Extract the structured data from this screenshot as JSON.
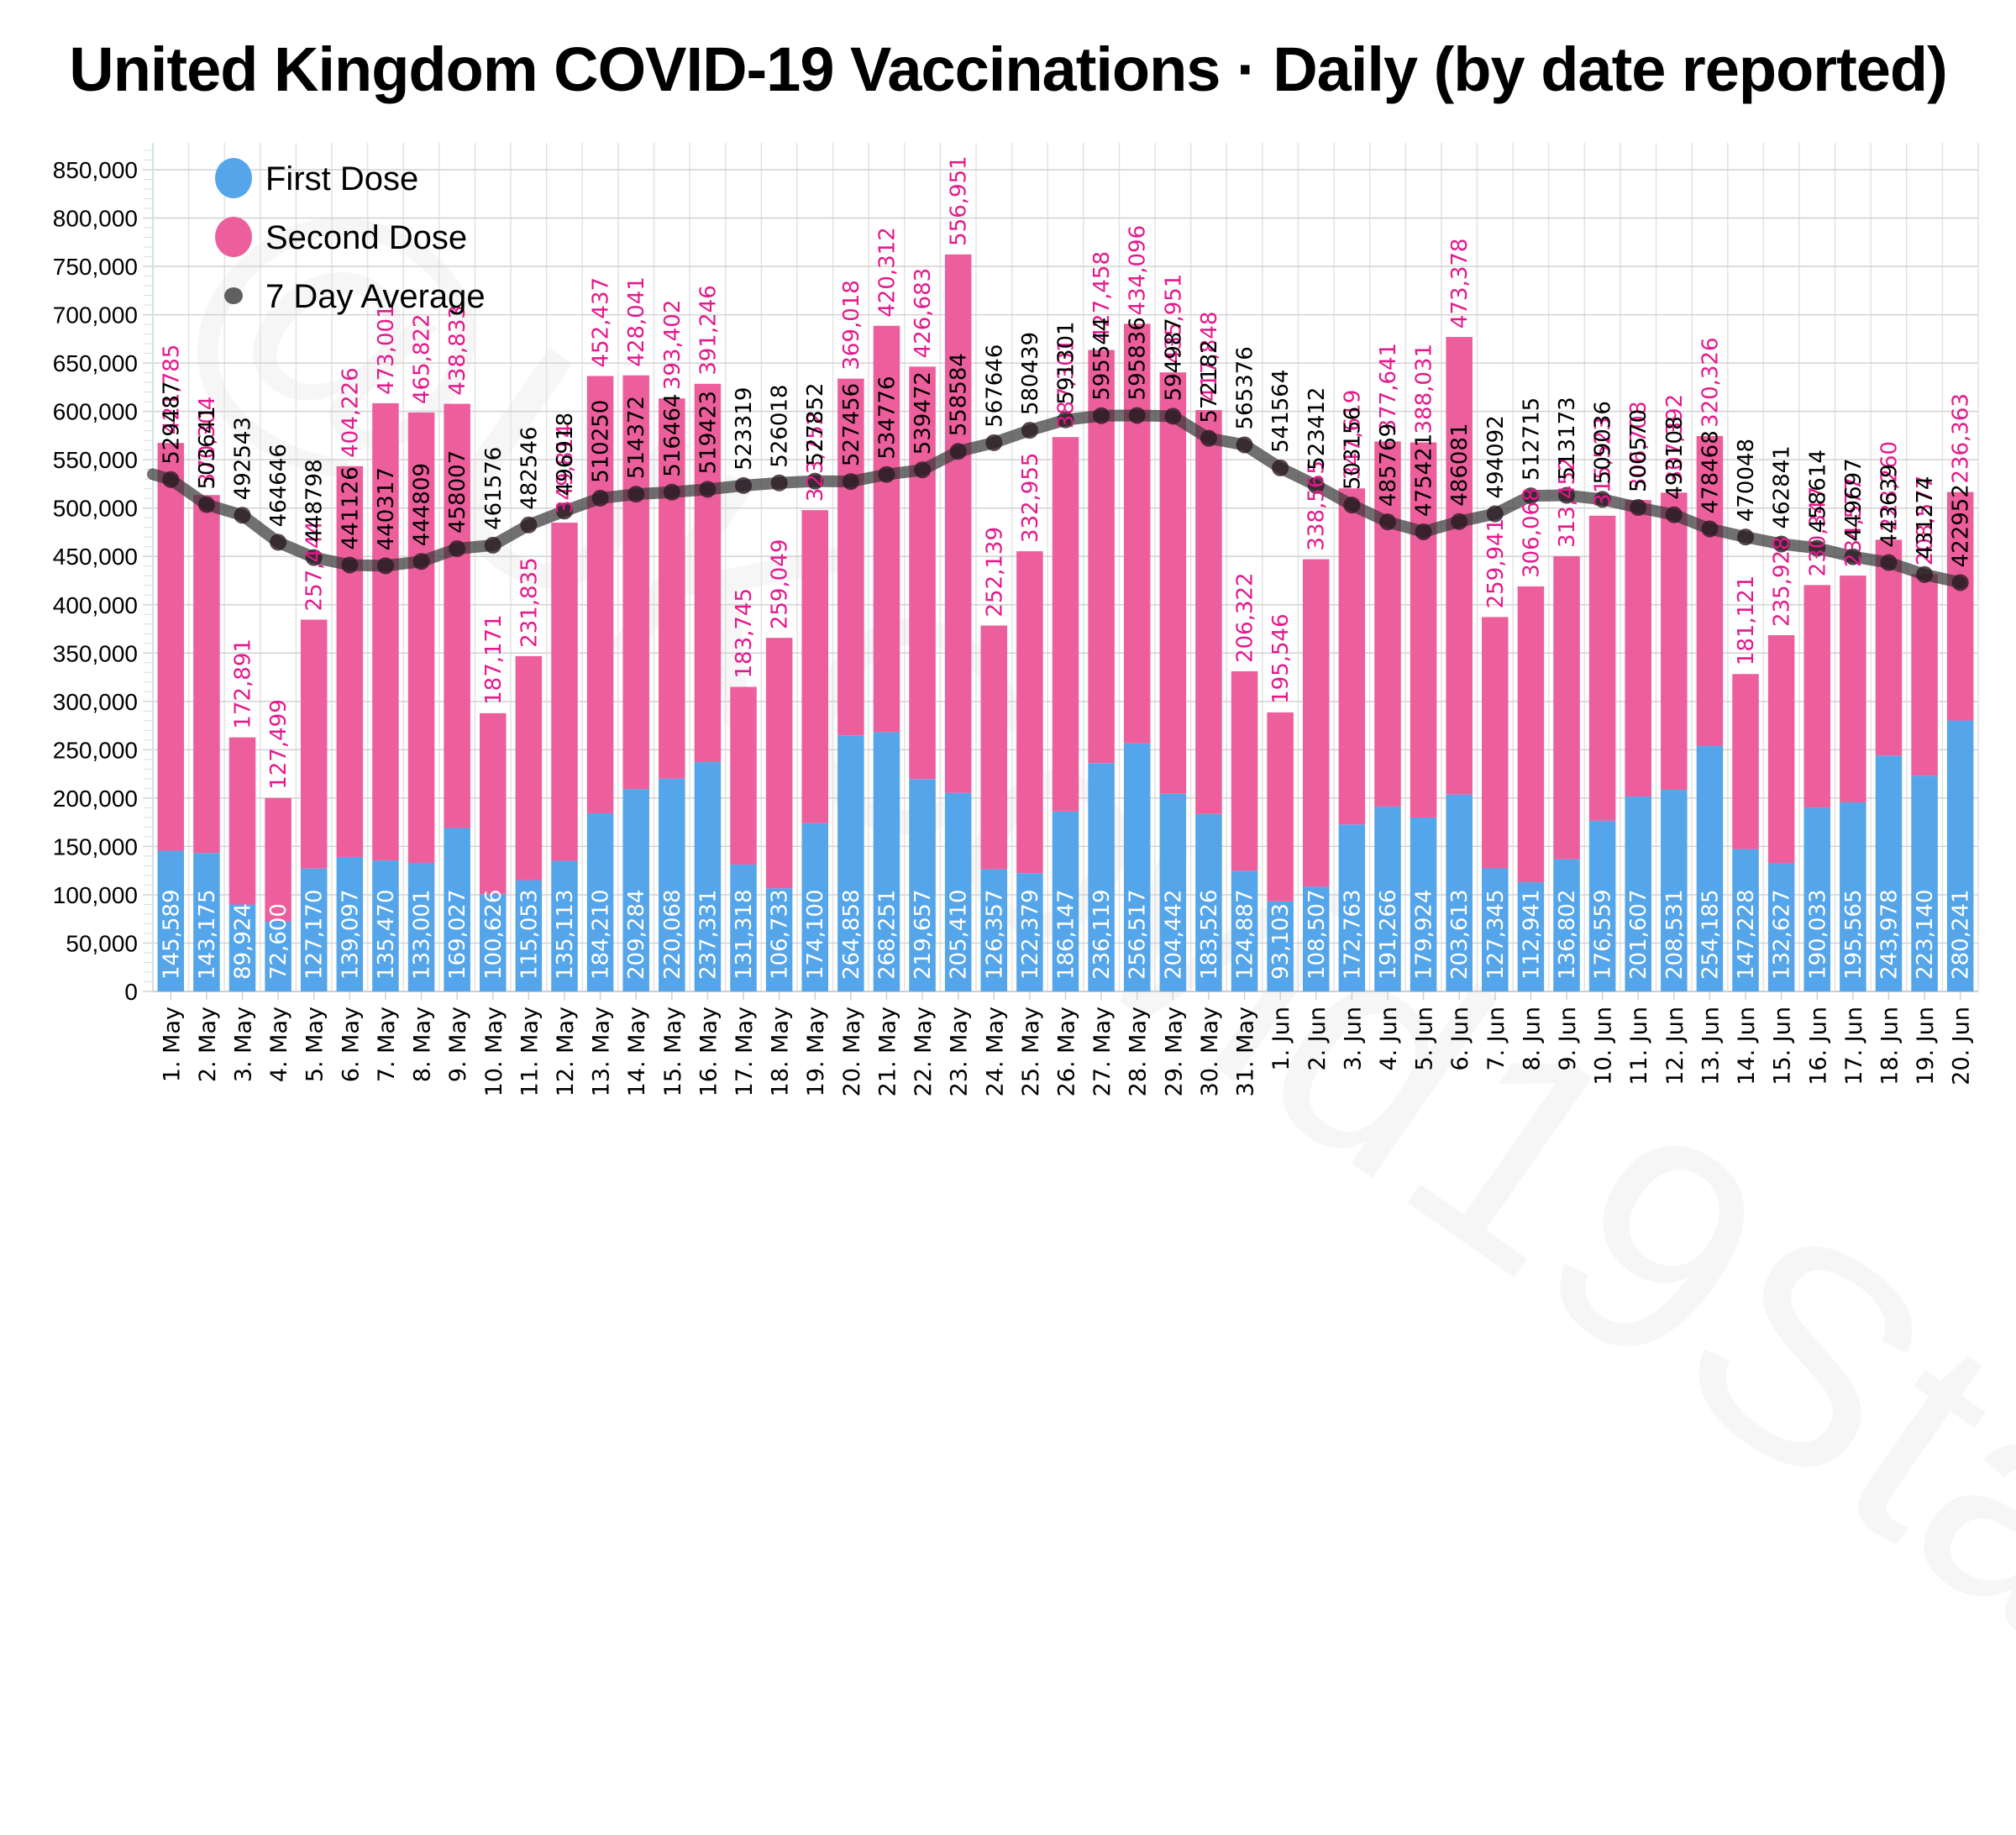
{
  "chart_data": {
    "type": "bar",
    "stacked": true,
    "title": "United Kingdom COVID-19 Vaccinations · Daily (by date reported)",
    "xlabel": "",
    "ylabel": "",
    "ylim": [
      0,
      870000
    ],
    "yticks": [
      0,
      50000,
      100000,
      150000,
      200000,
      250000,
      300000,
      350000,
      400000,
      450000,
      500000,
      550000,
      600000,
      650000,
      700000,
      750000,
      800000,
      850000
    ],
    "ytick_labels": [
      "0",
      "50,000",
      "100,000",
      "150,000",
      "200,000",
      "250,000",
      "300,000",
      "350,000",
      "400,000",
      "450,000",
      "500,000",
      "550,000",
      "600,000",
      "650,000",
      "700,000",
      "750,000",
      "800,000",
      "850,000"
    ],
    "grid": true,
    "legend_position": "top-left",
    "categories": [
      "1. May",
      "2. May",
      "3. May",
      "4. May",
      "5. May",
      "6. May",
      "7. May",
      "8. May",
      "9. May",
      "10. May",
      "11. May",
      "12. May",
      "13. May",
      "14. May",
      "15. May",
      "16. May",
      "17. May",
      "18. May",
      "19. May",
      "20. May",
      "21. May",
      "22. May",
      "23. May",
      "24. May",
      "25. May",
      "26. May",
      "27. May",
      "28. May",
      "29. May",
      "30. May",
      "31. May",
      "1. Jun",
      "2. Jun",
      "3. Jun",
      "4. Jun",
      "5. Jun",
      "6. Jun",
      "7. Jun",
      "8. Jun",
      "9. Jun",
      "10. Jun",
      "11. Jun",
      "12. Jun",
      "13. Jun",
      "14. Jun",
      "15. Jun",
      "16. Jun",
      "17. Jun",
      "18. Jun",
      "19. Jun",
      "20. Jun"
    ],
    "series": [
      {
        "name": "First Dose",
        "type": "bar",
        "color": "#55a5ea",
        "label_color": "#ffffff",
        "values": [
          145589,
          143175,
          89924,
          72600,
          127170,
          139097,
          135470,
          133001,
          169027,
          100626,
          115053,
          135113,
          184210,
          209284,
          220068,
          237331,
          131318,
          106733,
          174100,
          264858,
          268251,
          219657,
          205410,
          126357,
          122379,
          186147,
          236119,
          256517,
          204442,
          183526,
          124887,
          93103,
          108507,
          172763,
          191266,
          179924,
          203613,
          127345,
          112941,
          136802,
          176559,
          201607,
          208531,
          254185,
          147228,
          132627,
          190033,
          195565,
          243978,
          223140,
          280241
        ]
      },
      {
        "name": "Second Dose",
        "type": "bar",
        "color": "#ed5f9c",
        "label_color": "#e4198c",
        "values": [
          421785,
          370304,
          172891,
          127499,
          257444,
          404226,
          473001,
          465822,
          438833,
          187171,
          231835,
          349814,
          452437,
          428041,
          393402,
          391246,
          183745,
          259049,
          323752,
          369018,
          420312,
          426683,
          556951,
          252139,
          332955,
          387301,
          427458,
          434096,
          435951,
          417848,
          206322,
          195546,
          338565,
          347619,
          377641,
          388031,
          473378,
          259941,
          306068,
          313452,
          315523,
          306708,
          307392,
          320326,
          181121,
          235928,
          230347,
          234577,
          223260,
          208577,
          236363
        ]
      },
      {
        "name": "7 Day Average",
        "type": "line",
        "color": "#555555",
        "leading_value": 535000,
        "values": [
          529487,
          503641,
          492543,
          464646,
          448798,
          441126,
          440317,
          444809,
          458007,
          461576,
          482546,
          496918,
          510250,
          514372,
          516464,
          519423,
          523319,
          526018,
          527852,
          527456,
          534776,
          539472,
          558584,
          567646,
          580439,
          591301,
          595544,
          595836,
          594987,
          572182,
          565376,
          541564,
          523412,
          503156,
          485769,
          475421,
          486081,
          494092,
          512715,
          513173,
          509036,
          500570,
          493108,
          478468,
          470048,
          462841,
          458614,
          449697,
          443639,
          431274,
          422952
        ]
      }
    ]
  },
  "legend": [
    {
      "label": "First Dose",
      "marker": "circle",
      "color": "#55a5ea"
    },
    {
      "label": "Second Dose",
      "marker": "circle",
      "color": "#ed5f9c"
    },
    {
      "label": "7 Day Average",
      "marker": "dot",
      "color": "#444444"
    }
  ],
  "watermark": "@UKCovid19Stats"
}
